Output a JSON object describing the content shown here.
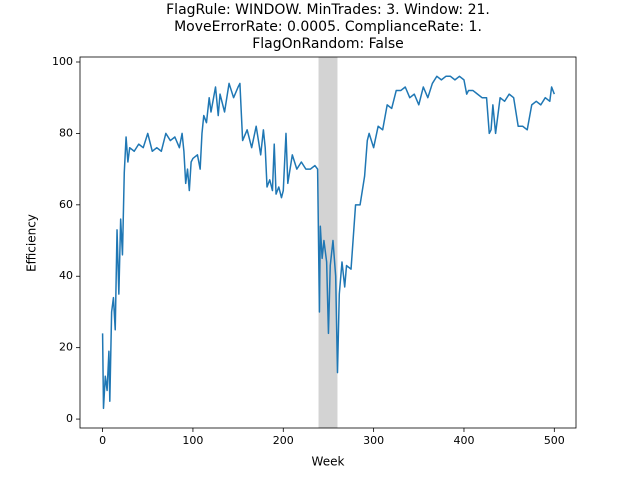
{
  "chart_data": {
    "type": "line",
    "title": [
      "FlagRule: WINDOW. MinTrades: 3. Window: 21.",
      "MoveErrorRate: 0.0005. ComplianceRate: 1.",
      "FlagOnRandom: False"
    ],
    "x_label": "Week",
    "y_label": "Efficiency",
    "x": [
      0,
      1,
      3,
      5,
      7,
      8,
      10,
      12,
      14,
      16,
      18,
      20,
      22,
      24,
      26,
      28,
      30,
      35,
      40,
      45,
      50,
      55,
      60,
      65,
      70,
      75,
      80,
      85,
      88,
      90,
      92,
      94,
      96,
      98,
      100,
      105,
      108,
      110,
      112,
      115,
      118,
      120,
      125,
      128,
      130,
      135,
      140,
      145,
      150,
      152,
      155,
      160,
      165,
      170,
      175,
      178,
      180,
      182,
      185,
      188,
      190,
      192,
      195,
      198,
      200,
      203,
      205,
      210,
      215,
      220,
      225,
      230,
      235,
      238,
      240,
      241,
      243,
      245,
      248,
      250,
      252,
      255,
      258,
      260,
      262,
      265,
      268,
      270,
      275,
      280,
      285,
      290,
      293,
      295,
      300,
      305,
      310,
      315,
      320,
      325,
      330,
      335,
      340,
      345,
      350,
      355,
      360,
      365,
      370,
      375,
      380,
      385,
      390,
      395,
      400,
      403,
      405,
      410,
      415,
      420,
      425,
      428,
      430,
      432,
      435,
      440,
      445,
      450,
      455,
      460,
      465,
      470,
      475,
      480,
      485,
      490,
      495,
      497,
      500
    ],
    "values": [
      24,
      3,
      12,
      8,
      19,
      5,
      30,
      34,
      25,
      53,
      35,
      56,
      46,
      69,
      79,
      72,
      76,
      75,
      77,
      76,
      80,
      75,
      76,
      75,
      80,
      78,
      79,
      76,
      80,
      75,
      66,
      70,
      64,
      72,
      73,
      74,
      70,
      80,
      85,
      83,
      90,
      86,
      93,
      85,
      91,
      86,
      94,
      90,
      93,
      94,
      78,
      81,
      76,
      82,
      74,
      81,
      76,
      65,
      67,
      64,
      77,
      63,
      65,
      62,
      64,
      80,
      66,
      74,
      70,
      72,
      70,
      70,
      71,
      70,
      30,
      54,
      45,
      50,
      44,
      24,
      43,
      50,
      40,
      13,
      35,
      44,
      37,
      43,
      42,
      60,
      60,
      68,
      78,
      80,
      76,
      82,
      81,
      88,
      87,
      92,
      92,
      93,
      90,
      91,
      88,
      93,
      90,
      94,
      96,
      95,
      96,
      96,
      95,
      96,
      95,
      91,
      92,
      92,
      91,
      90,
      90,
      80,
      81,
      88,
      80,
      90,
      89,
      91,
      90,
      82,
      82,
      81,
      88,
      89,
      88,
      90,
      89,
      93,
      91
    ],
    "color": "#1f77b4",
    "highlight_x": [
      239,
      260
    ],
    "highlight_color": "#d3d3d3",
    "xlim": [
      -25,
      524
    ],
    "ylim": [
      -2.5,
      101.4
    ],
    "xticks": [
      0,
      100,
      200,
      300,
      400,
      500
    ],
    "yticks": [
      0,
      20,
      40,
      60,
      80,
      100
    ]
  }
}
